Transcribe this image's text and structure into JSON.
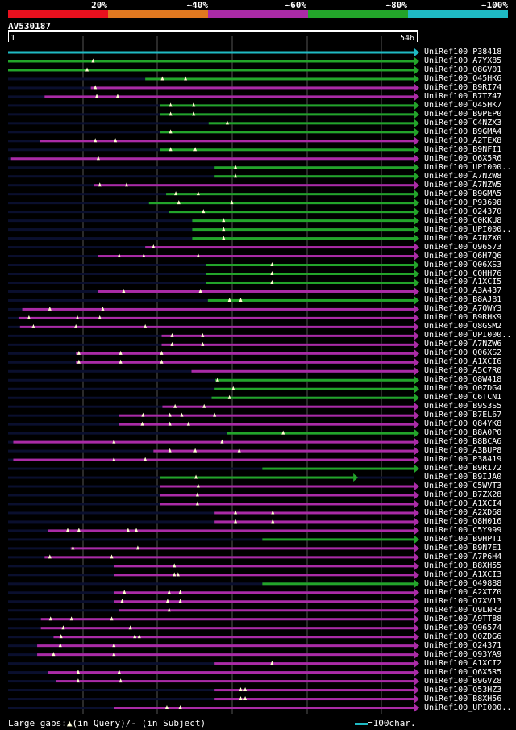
{
  "legend": [
    {
      "label": "20%",
      "color": "#e8101e"
    },
    {
      "label": "~40%",
      "color": "#e07820"
    },
    {
      "label": "~60%",
      "color": "#aa2ba6"
    },
    {
      "label": "~80%",
      "color": "#23a42a"
    },
    {
      "label": "~100%",
      "color": "#1fbac4"
    }
  ],
  "query": {
    "name": "AV530187",
    "start": "1",
    "end": "546",
    "length": 546
  },
  "hits": [
    {
      "id": "UniRef100_P38418",
      "s": 1,
      "e": 546,
      "c": "#1fbac4",
      "gaps": []
    },
    {
      "id": "UniRef100_A7YX85",
      "s": 1,
      "e": 546,
      "c": "#23a42a",
      "gaps": [
        115
      ]
    },
    {
      "id": "UniRef100_Q8GV01",
      "s": 1,
      "e": 546,
      "c": "#23a42a",
      "gaps": [
        107
      ]
    },
    {
      "id": "UniRef100_Q45HK6",
      "s": 185,
      "e": 546,
      "c": "#23a42a",
      "gaps": [
        208,
        239
      ]
    },
    {
      "id": "UniRef100_B9RI74",
      "s": 112,
      "e": 546,
      "c": "#aa2ba6",
      "gaps": [
        118
      ]
    },
    {
      "id": "UniRef100_B7TZ47",
      "s": 50,
      "e": 546,
      "c": "#aa2ba6",
      "gaps": [
        120,
        148
      ]
    },
    {
      "id": "UniRef100_Q45HK7",
      "s": 205,
      "e": 546,
      "c": "#23a42a",
      "gaps": [
        219,
        250
      ]
    },
    {
      "id": "UniRef100_B9PEP0",
      "s": 205,
      "e": 546,
      "c": "#23a42a",
      "gaps": [
        219,
        250
      ]
    },
    {
      "id": "UniRef100_C4NZX3",
      "s": 270,
      "e": 546,
      "c": "#23a42a",
      "gaps": [
        295
      ]
    },
    {
      "id": "UniRef100_B9GMA4",
      "s": 205,
      "e": 546,
      "c": "#23a42a",
      "gaps": [
        219
      ]
    },
    {
      "id": "UniRef100_A2TEX8",
      "s": 44,
      "e": 546,
      "c": "#aa2ba6",
      "gaps": [
        118,
        145
      ]
    },
    {
      "id": "UniRef100_B9NFI1",
      "s": 205,
      "e": 546,
      "c": "#23a42a",
      "gaps": [
        219,
        252
      ]
    },
    {
      "id": "UniRef100_Q6X5R6",
      "s": 5,
      "e": 546,
      "c": "#aa2ba6",
      "gaps": [
        122
      ]
    },
    {
      "id": "UniRef100_UPI000..",
      "s": 278,
      "e": 546,
      "c": "#23a42a",
      "gaps": [
        306
      ]
    },
    {
      "id": "UniRef100_A7NZW8",
      "s": 278,
      "e": 546,
      "c": "#23a42a",
      "gaps": [
        306
      ]
    },
    {
      "id": "UniRef100_A7NZW5",
      "s": 116,
      "e": 546,
      "c": "#aa2ba6",
      "gaps": [
        124,
        160
      ]
    },
    {
      "id": "UniRef100_B9GMA5",
      "s": 213,
      "e": 546,
      "c": "#23a42a",
      "gaps": [
        226,
        256
      ]
    },
    {
      "id": "UniRef100_P93698",
      "s": 190,
      "e": 546,
      "c": "#23a42a",
      "gaps": [
        230,
        301
      ]
    },
    {
      "id": "UniRef100_O24370",
      "s": 217,
      "e": 546,
      "c": "#23a42a",
      "gaps": [
        263
      ]
    },
    {
      "id": "UniRef100_C0KKU8",
      "s": 248,
      "e": 546,
      "c": "#23a42a",
      "gaps": [
        290
      ]
    },
    {
      "id": "UniRef100_UPI000..",
      "s": 248,
      "e": 546,
      "c": "#23a42a",
      "gaps": [
        290
      ]
    },
    {
      "id": "UniRef100_A7NZX0",
      "s": 248,
      "e": 546,
      "c": "#23a42a",
      "gaps": [
        290
      ]
    },
    {
      "id": "UniRef100_Q96573",
      "s": 185,
      "e": 546,
      "c": "#aa2ba6",
      "gaps": [
        196
      ]
    },
    {
      "id": "UniRef100_Q6H7Q6",
      "s": 122,
      "e": 546,
      "c": "#aa2ba6",
      "gaps": [
        150,
        183,
        256
      ]
    },
    {
      "id": "UniRef100_Q06XS3",
      "s": 266,
      "e": 546,
      "c": "#23a42a",
      "gaps": [
        355
      ]
    },
    {
      "id": "UniRef100_C0HH76",
      "s": 266,
      "e": 546,
      "c": "#23a42a",
      "gaps": [
        355
      ]
    },
    {
      "id": "UniRef100_A1XCI5",
      "s": 266,
      "e": 546,
      "c": "#23a42a",
      "gaps": [
        355
      ]
    },
    {
      "id": "UniRef100_A3A437",
      "s": 122,
      "e": 546,
      "c": "#aa2ba6",
      "gaps": [
        156,
        259
      ]
    },
    {
      "id": "UniRef100_B8AJB1",
      "s": 269,
      "e": 546,
      "c": "#23a42a",
      "gaps": [
        298,
        313
      ]
    },
    {
      "id": "UniRef100_A7QWY3",
      "s": 20,
      "e": 546,
      "c": "#aa2ba6",
      "gaps": [
        57,
        128
      ]
    },
    {
      "id": "UniRef100_B9RHK9",
      "s": 15,
      "e": 546,
      "c": "#aa2ba6",
      "gaps": [
        29,
        94,
        124
      ]
    },
    {
      "id": "UniRef100_Q8GSM2",
      "s": 17,
      "e": 546,
      "c": "#aa2ba6",
      "gaps": [
        35,
        92,
        185
      ]
    },
    {
      "id": "UniRef100_UPI000..",
      "s": 207,
      "e": 546,
      "c": "#aa2ba6",
      "gaps": [
        221,
        262
      ]
    },
    {
      "id": "UniRef100_A7NZW6",
      "s": 207,
      "e": 546,
      "c": "#aa2ba6",
      "gaps": [
        221,
        262
      ]
    },
    {
      "id": "UniRef100_Q06XS2",
      "s": 92,
      "e": 546,
      "c": "#aa2ba6",
      "gaps": [
        96,
        152,
        207
      ]
    },
    {
      "id": "UniRef100_A1XCI6",
      "s": 92,
      "e": 546,
      "c": "#aa2ba6",
      "gaps": [
        96,
        152,
        207
      ]
    },
    {
      "id": "UniRef100_A5C7R0",
      "s": 247,
      "e": 546,
      "c": "#aa2ba6",
      "gaps": []
    },
    {
      "id": "UniRef100_Q8W418",
      "s": 279,
      "e": 546,
      "c": "#23a42a",
      "gaps": [
        282
      ]
    },
    {
      "id": "UniRef100_Q0ZDG4",
      "s": 278,
      "e": 546,
      "c": "#23a42a",
      "gaps": [
        303
      ]
    },
    {
      "id": "UniRef100_C6TCN1",
      "s": 274,
      "e": 546,
      "c": "#23a42a",
      "gaps": [
        298
      ]
    },
    {
      "id": "UniRef100_B9S3S5",
      "s": 208,
      "e": 546,
      "c": "#aa2ba6",
      "gaps": [
        225,
        264
      ]
    },
    {
      "id": "UniRef100_B7EL67",
      "s": 150,
      "e": 546,
      "c": "#aa2ba6",
      "gaps": [
        182,
        218,
        234,
        278
      ]
    },
    {
      "id": "UniRef100_Q84YK8",
      "s": 150,
      "e": 546,
      "c": "#aa2ba6",
      "gaps": [
        181,
        218,
        243
      ]
    },
    {
      "id": "UniRef100_B8A0P0",
      "s": 295,
      "e": 546,
      "c": "#23a42a",
      "gaps": [
        370
      ]
    },
    {
      "id": "UniRef100_B8BCA6",
      "s": 8,
      "e": 546,
      "c": "#aa2ba6",
      "gaps": [
        143,
        288
      ]
    },
    {
      "id": "UniRef100_A3BUP8",
      "s": 196,
      "e": 546,
      "c": "#aa2ba6",
      "gaps": [
        218,
        252,
        311
      ]
    },
    {
      "id": "UniRef100_P38419",
      "s": 8,
      "e": 546,
      "c": "#aa2ba6",
      "gaps": [
        143,
        185
      ]
    },
    {
      "id": "UniRef100_B9RI72",
      "s": 342,
      "e": 546,
      "c": "#23a42a",
      "gaps": []
    },
    {
      "id": "UniRef100_B9IJA0",
      "s": 205,
      "e": 464,
      "c": "#23a42a",
      "gaps": [
        253
      ]
    },
    {
      "id": "UniRef100_C5WVT3",
      "s": 205,
      "e": 546,
      "c": "#aa2ba6",
      "gaps": [
        256
      ]
    },
    {
      "id": "UniRef100_B7ZX28",
      "s": 205,
      "e": 546,
      "c": "#aa2ba6",
      "gaps": [
        255
      ]
    },
    {
      "id": "UniRef100_A1XCI4",
      "s": 205,
      "e": 546,
      "c": "#aa2ba6",
      "gaps": [
        255
      ]
    },
    {
      "id": "UniRef100_A2XD68",
      "s": 278,
      "e": 546,
      "c": "#aa2ba6",
      "gaps": [
        306,
        356
      ]
    },
    {
      "id": "UniRef100_Q8H016",
      "s": 278,
      "e": 546,
      "c": "#aa2ba6",
      "gaps": [
        306,
        356
      ]
    },
    {
      "id": "UniRef100_C5Y999",
      "s": 55,
      "e": 546,
      "c": "#aa2ba6",
      "gaps": [
        81,
        96,
        162,
        173
      ]
    },
    {
      "id": "UniRef100_B9HPT1",
      "s": 342,
      "e": 546,
      "c": "#23a42a",
      "gaps": []
    },
    {
      "id": "UniRef100_B9N7E1",
      "s": 85,
      "e": 546,
      "c": "#aa2ba6",
      "gaps": [
        88,
        175
      ]
    },
    {
      "id": "UniRef100_A7P6H4",
      "s": 50,
      "e": 546,
      "c": "#aa2ba6",
      "gaps": [
        57,
        140
      ]
    },
    {
      "id": "UniRef100_B8XH55",
      "s": 143,
      "e": 546,
      "c": "#aa2ba6",
      "gaps": [
        224
      ]
    },
    {
      "id": "UniRef100_A1XCI3",
      "s": 143,
      "e": 546,
      "c": "#aa2ba6",
      "gaps": [
        224,
        229
      ]
    },
    {
      "id": "UniRef100_O49888",
      "s": 342,
      "e": 546,
      "c": "#23a42a",
      "gaps": []
    },
    {
      "id": "UniRef100_A2XTZ0",
      "s": 143,
      "e": 546,
      "c": "#aa2ba6",
      "gaps": [
        157,
        217,
        232
      ]
    },
    {
      "id": "UniRef100_Q7XV13",
      "s": 143,
      "e": 546,
      "c": "#aa2ba6",
      "gaps": [
        154,
        215,
        232
      ]
    },
    {
      "id": "UniRef100_Q9LNR3",
      "s": 150,
      "e": 546,
      "c": "#aa2ba6",
      "gaps": [
        217
      ]
    },
    {
      "id": "UniRef100_A9TT88",
      "s": 45,
      "e": 546,
      "c": "#aa2ba6",
      "gaps": [
        58,
        86,
        140
      ]
    },
    {
      "id": "UniRef100_Q96574",
      "s": 45,
      "e": 546,
      "c": "#aa2ba6",
      "gaps": [
        75,
        165
      ]
    },
    {
      "id": "UniRef100_Q0ZDG6",
      "s": 62,
      "e": 546,
      "c": "#aa2ba6",
      "gaps": [
        72,
        171,
        177
      ]
    },
    {
      "id": "UniRef100_O24371",
      "s": 40,
      "e": 546,
      "c": "#aa2ba6",
      "gaps": [
        71,
        143
      ]
    },
    {
      "id": "UniRef100_Q93YA9",
      "s": 40,
      "e": 546,
      "c": "#aa2ba6",
      "gaps": [
        62,
        143
      ]
    },
    {
      "id": "UniRef100_A1XCI2",
      "s": 278,
      "e": 546,
      "c": "#aa2ba6",
      "gaps": [
        355
      ]
    },
    {
      "id": "UniRef100_Q6X5R5",
      "s": 55,
      "e": 546,
      "c": "#aa2ba6",
      "gaps": [
        95,
        150
      ]
    },
    {
      "id": "UniRef100_B9GVZ8",
      "s": 65,
      "e": 546,
      "c": "#aa2ba6",
      "gaps": [
        95,
        152
      ]
    },
    {
      "id": "UniRef100_Q53HZ3",
      "s": 278,
      "e": 546,
      "c": "#aa2ba6",
      "gaps": [
        313,
        319
      ]
    },
    {
      "id": "UniRef100_B8XH56",
      "s": 278,
      "e": 546,
      "c": "#aa2ba6",
      "gaps": [
        313,
        319
      ]
    },
    {
      "id": "UniRef100_UPI000..",
      "s": 143,
      "e": 546,
      "c": "#aa2ba6",
      "gaps": [
        214,
        232
      ]
    }
  ],
  "footer": {
    "gaps_prefix": "Large gaps:",
    "gaps_query": "(in Query)/",
    "gaps_subject": "(in Subject)",
    "scale_text": "=100char."
  }
}
